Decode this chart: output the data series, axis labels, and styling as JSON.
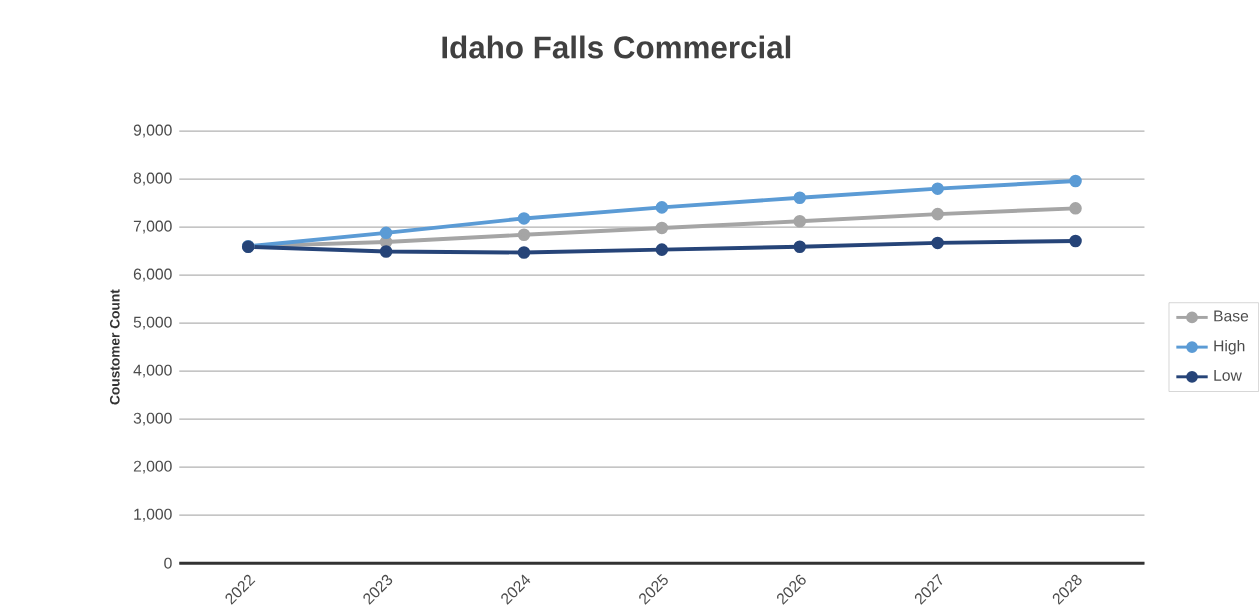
{
  "chart_data": {
    "type": "line",
    "title": "Idaho Falls Commercial",
    "ylabel": "Coustomer Count",
    "categories": [
      "2022",
      "2023",
      "2024",
      "2025",
      "2026",
      "2027",
      "2028"
    ],
    "series": [
      {
        "name": "Base",
        "color": "#a5a5a5",
        "values": [
          6600,
          6690,
          6840,
          6980,
          7120,
          7270,
          7390
        ]
      },
      {
        "name": "High",
        "color": "#5b9bd5",
        "values": [
          6600,
          6880,
          7180,
          7410,
          7610,
          7800,
          7960
        ]
      },
      {
        "name": "Low",
        "color": "#264478",
        "values": [
          6590,
          6490,
          6470,
          6530,
          6590,
          6670,
          6710
        ]
      }
    ],
    "ylim": [
      0,
      9000
    ],
    "yticks": [
      0,
      {
        "value": 1000,
        "label": "1,000"
      },
      {
        "value": 2000,
        "label": "2,000"
      },
      {
        "value": 3000,
        "label": "3,000"
      },
      {
        "value": 4000,
        "label": "4,000"
      },
      {
        "value": 5000,
        "label": "5,000"
      },
      {
        "value": 6000,
        "label": "6,000"
      },
      {
        "value": 7000,
        "label": "7,000"
      },
      {
        "value": 8000,
        "label": "8,000"
      },
      {
        "value": 9000,
        "label": "9,000"
      }
    ],
    "grid": "y",
    "legend": "right",
    "marker": "circle",
    "line_style": "solid"
  }
}
